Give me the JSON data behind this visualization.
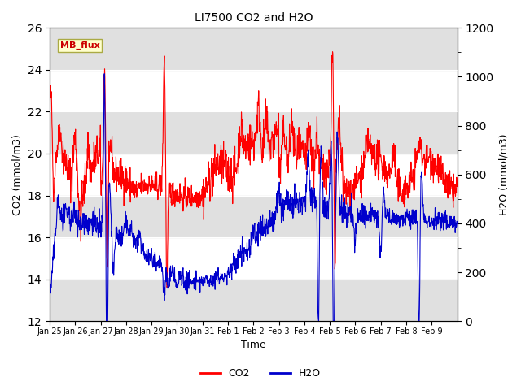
{
  "title": "LI7500 CO2 and H2O",
  "xlabel": "Time",
  "ylabel_left": "CO2 (mmol/m3)",
  "ylabel_right": "H2O (mmol/m3)",
  "co2_ylim": [
    12,
    26
  ],
  "h2o_ylim": [
    0,
    1200
  ],
  "co2_yticks": [
    12,
    14,
    16,
    18,
    20,
    22,
    24,
    26
  ],
  "h2o_yticks": [
    0,
    200,
    400,
    600,
    800,
    1000,
    1200
  ],
  "co2_color": "#ff0000",
  "h2o_color": "#0000cc",
  "background_color": "#ffffff",
  "band_color": "#e0e0e0",
  "legend_label_co2": "CO2",
  "legend_label_h2o": "H2O",
  "annotation_text": "MB_flux",
  "xtick_labels": [
    "Jan 25",
    "Jan 26",
    "Jan 27",
    "Jan 28",
    "Jan 29",
    "Jan 30",
    "Jan 31",
    "Feb 1",
    "Feb 2",
    "Feb 3",
    "Feb 4",
    "Feb 5",
    "Feb 6",
    "Feb 7",
    "Feb 8",
    "Feb 9"
  ],
  "n_points": 1440,
  "seed": 42
}
